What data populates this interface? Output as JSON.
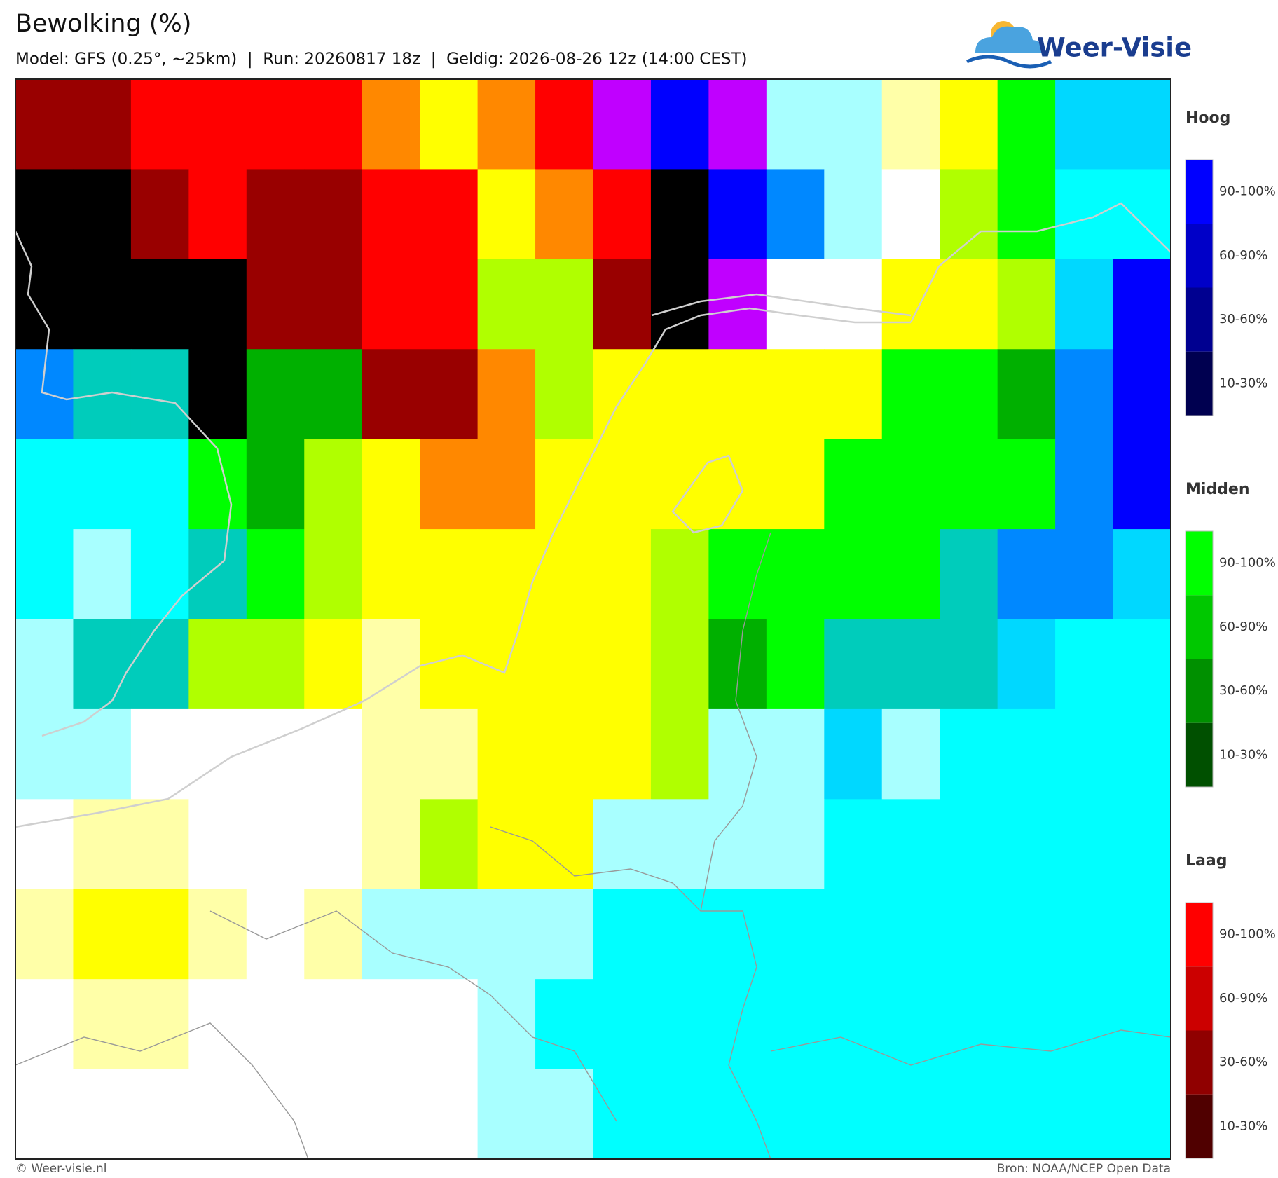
{
  "header": {
    "title": "Bewolking (%)",
    "subtitle": "Model: GFS (0.25°, ~25km)  |  Run: 20260817 18z  |  Geldig: 2026-08-26 12z (14:00 CEST)",
    "logo": "Weer-Visie"
  },
  "legend": {
    "groups": [
      {
        "title": "Hoog",
        "labels": [
          "90-100%",
          "60-90%",
          "30-60%",
          "10-30%"
        ]
      },
      {
        "title": "Midden",
        "labels": [
          "90-100%",
          "60-90%",
          "30-60%",
          "10-30%"
        ]
      },
      {
        "title": "Laag",
        "labels": [
          "90-100%",
          "60-90%",
          "30-60%",
          "10-30%"
        ]
      }
    ]
  },
  "footer": {
    "left": "© Weer-visie.nl",
    "right": "Bron: NOAA/NCEP Open Data"
  }
}
